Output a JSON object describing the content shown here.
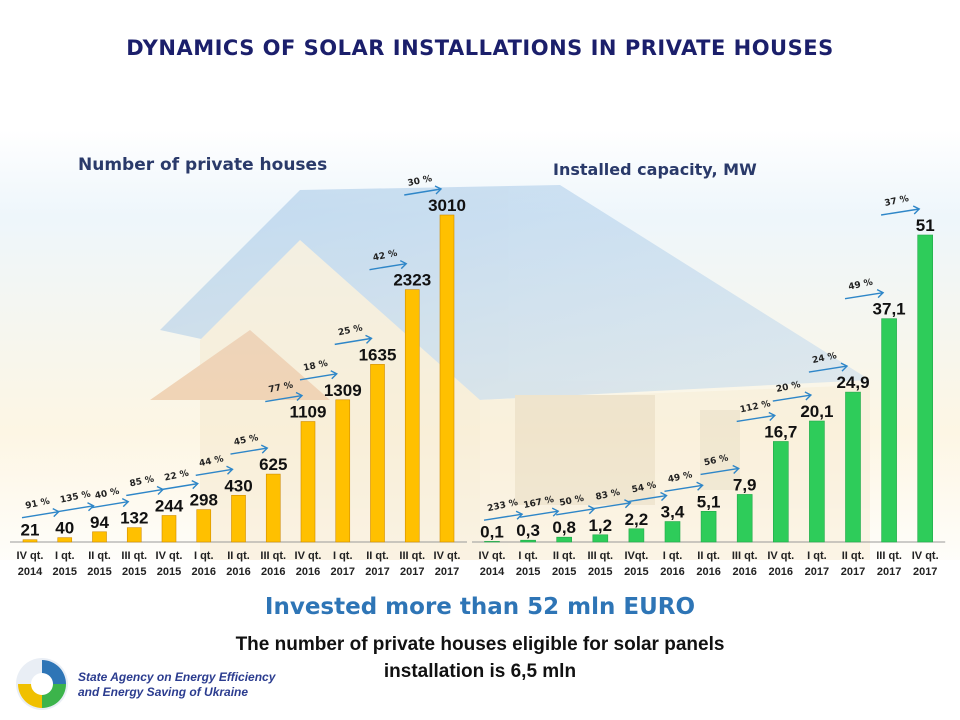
{
  "title": "DYNAMICS OF SOLAR INSTALLATIONS IN PRIVATE HOUSES",
  "invested_text": "Invested more than 52 mln EURO",
  "note_line1": "The number of private houses eligible for solar panels",
  "note_line2": "installation is 6,5 mln",
  "agency_line1": "State Agency on Energy Efficiency",
  "agency_line2": "and Energy Saving of Ukraine",
  "chart_data": [
    {
      "type": "bar",
      "title": "Number of private houses",
      "color": "#ffc000",
      "categories": [
        [
          "IV qt.",
          "2014"
        ],
        [
          "I qt.",
          "2015"
        ],
        [
          "II qt.",
          "2015"
        ],
        [
          "III qt.",
          "2015"
        ],
        [
          "IV qt.",
          "2015"
        ],
        [
          "I qt.",
          "2016"
        ],
        [
          "II qt.",
          "2016"
        ],
        [
          "III qt.",
          "2016"
        ],
        [
          "IV qt.",
          "2016"
        ],
        [
          "I qt.",
          "2017"
        ],
        [
          "II qt.",
          "2017"
        ],
        [
          "III qt.",
          "2017"
        ],
        [
          "IV qt.",
          "2017"
        ]
      ],
      "values": [
        21,
        40,
        94,
        132,
        244,
        298,
        430,
        625,
        1109,
        1309,
        1635,
        2323,
        3010
      ],
      "labels": [
        "21",
        "40",
        "94",
        "132",
        "244",
        "298",
        "430",
        "625",
        "1109",
        "1309",
        "1635",
        "2323",
        "3010"
      ],
      "growth": [
        "91 %",
        "135 %",
        "40 %",
        "85 %",
        "22 %",
        "44 %",
        "45 %",
        "77 %",
        "18 %",
        "25 %",
        "42 %",
        "30 %"
      ],
      "ylim": [
        0,
        3010
      ]
    },
    {
      "type": "bar",
      "title": "Installed capacity, MW",
      "color": "#2ecc5a",
      "categories": [
        [
          "IV qt.",
          "2014"
        ],
        [
          "I qt.",
          "2015"
        ],
        [
          "II qt.",
          "2015"
        ],
        [
          "III qt.",
          "2015"
        ],
        [
          "IVqt.",
          "2015"
        ],
        [
          "I qt.",
          "2016"
        ],
        [
          "II qt.",
          "2016"
        ],
        [
          "III qt.",
          "2016"
        ],
        [
          "IV qt.",
          "2016"
        ],
        [
          "I qt.",
          "2017"
        ],
        [
          "II qt.",
          "2017"
        ],
        [
          "III qt.",
          "2017"
        ],
        [
          "IV qt.",
          "2017"
        ]
      ],
      "values": [
        0.1,
        0.3,
        0.8,
        1.2,
        2.2,
        3.4,
        5.1,
        7.9,
        16.7,
        20.1,
        24.9,
        37.1,
        51
      ],
      "labels": [
        "0,1",
        "0,3",
        "0,8",
        "1,2",
        "2,2",
        "3,4",
        "5,1",
        "7,9",
        "16,7",
        "20,1",
        "24,9",
        "37,1",
        "51"
      ],
      "growth": [
        "233 %",
        "167 %",
        "50 %",
        "83 %",
        "54 %",
        "49 %",
        "56 %",
        "112 %",
        "20 %",
        "24 %",
        "49 %",
        "37 %"
      ],
      "ylim": [
        0,
        51
      ]
    }
  ]
}
